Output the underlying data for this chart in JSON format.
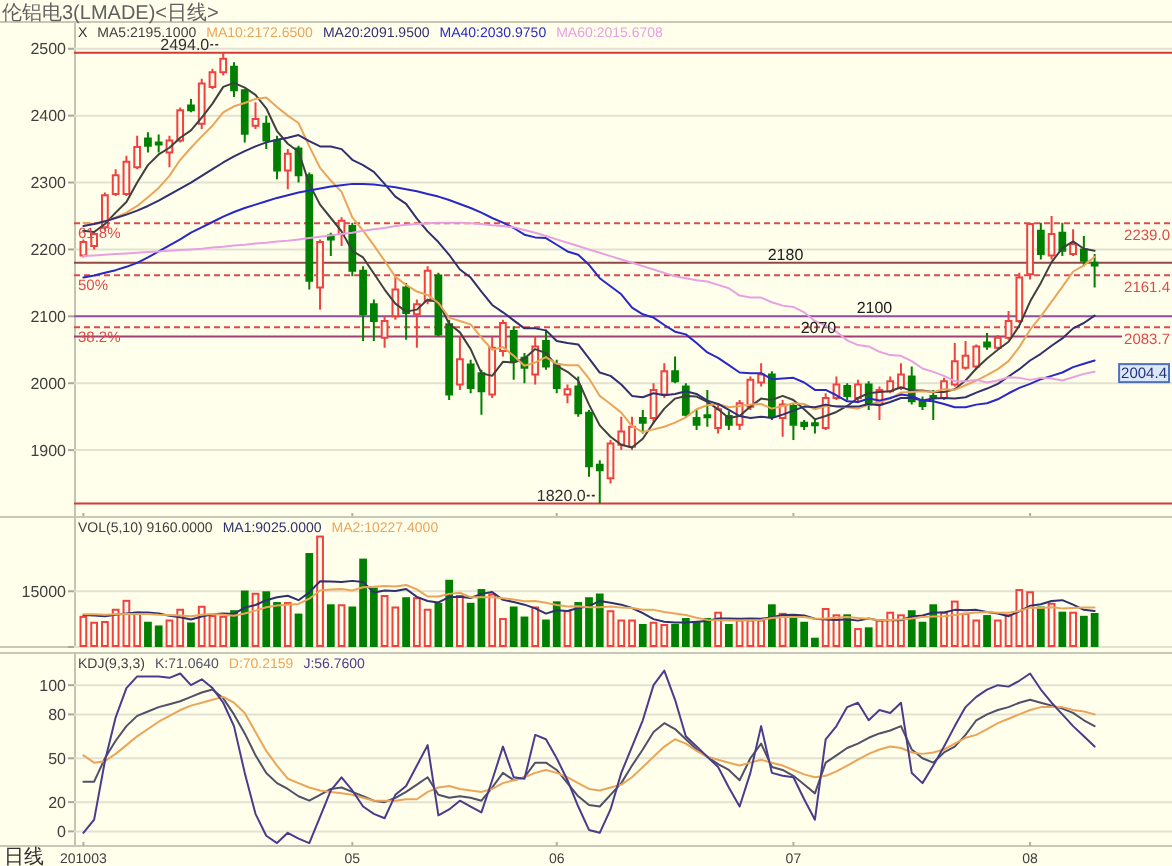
{
  "chart_data": [
    {
      "type": "candlestick",
      "title": "伦铝电3(LMADE)<日线>",
      "categories": [
        "201003",
        null,
        null,
        null,
        null,
        null,
        null,
        null,
        null,
        null,
        null,
        null,
        null,
        null,
        null,
        null,
        null,
        null,
        null,
        null,
        null,
        null,
        null,
        null,
        null,
        "05",
        null,
        null,
        null,
        null,
        null,
        null,
        null,
        null,
        null,
        null,
        null,
        null,
        null,
        null,
        null,
        null,
        null,
        null,
        "06",
        null,
        null,
        null,
        null,
        null,
        null,
        null,
        null,
        null,
        null,
        null,
        null,
        null,
        null,
        null,
        null,
        null,
        null,
        null,
        null,
        null,
        "07",
        null,
        null,
        null,
        null,
        null,
        null,
        null,
        null,
        null,
        null,
        null,
        null,
        null,
        null,
        null,
        null,
        null,
        null,
        null,
        null,
        null,
        "08",
        null,
        null,
        null,
        null,
        null,
        null
      ],
      "ohlc": [
        [
          2191,
          2215,
          2188,
          2211
        ],
        [
          2205,
          2226,
          2200,
          2223
        ],
        [
          2233,
          2285,
          2228,
          2281
        ],
        [
          2283,
          2320,
          2280,
          2311
        ],
        [
          2283,
          2340,
          2280,
          2331
        ],
        [
          2323,
          2370,
          2320,
          2353
        ],
        [
          2366,
          2375,
          2345,
          2355
        ],
        [
          2360,
          2372,
          2345,
          2358
        ],
        [
          2345,
          2370,
          2323,
          2363
        ],
        [
          2363,
          2412,
          2360,
          2408
        ],
        [
          2415,
          2425,
          2405,
          2408
        ],
        [
          2388,
          2455,
          2380,
          2448
        ],
        [
          2443,
          2470,
          2440,
          2465
        ],
        [
          2465,
          2494,
          2460,
          2485
        ],
        [
          2473,
          2480,
          2428,
          2438
        ],
        [
          2438,
          2440,
          2360,
          2373
        ],
        [
          2385,
          2420,
          2380,
          2395
        ],
        [
          2388,
          2400,
          2350,
          2363
        ],
        [
          2363,
          2370,
          2305,
          2318
        ],
        [
          2318,
          2350,
          2290,
          2343
        ],
        [
          2351,
          2355,
          2300,
          2311
        ],
        [
          2311,
          2315,
          2140,
          2153
        ],
        [
          2143,
          2215,
          2110,
          2211
        ],
        [
          2221,
          2225,
          2190,
          2215
        ],
        [
          2223,
          2248,
          2205,
          2243
        ],
        [
          2235,
          2240,
          2160,
          2168
        ],
        [
          2168,
          2175,
          2063,
          2103
        ],
        [
          2118,
          2125,
          2063,
          2093
        ],
        [
          2068,
          2100,
          2053,
          2093
        ],
        [
          2100,
          2160,
          2095,
          2140
        ],
        [
          2143,
          2150,
          2065,
          2105
        ],
        [
          2103,
          2125,
          2053,
          2118
        ],
        [
          2123,
          2175,
          2118,
          2168
        ],
        [
          2161,
          2165,
          2070,
          2073
        ],
        [
          2088,
          2095,
          1975,
          1983
        ],
        [
          1998,
          2070,
          1990,
          2036
        ],
        [
          2028,
          2035,
          1985,
          1993
        ],
        [
          2015,
          2020,
          1953,
          1988
        ],
        [
          1983,
          2070,
          1978,
          2053
        ],
        [
          2048,
          2095,
          2040,
          2090
        ],
        [
          2078,
          2085,
          2005,
          2033
        ],
        [
          2038,
          2045,
          2000,
          2023
        ],
        [
          2013,
          2070,
          1998,
          2055
        ],
        [
          2063,
          2080,
          2020,
          2025
        ],
        [
          2028,
          2035,
          1985,
          1993
        ],
        [
          1983,
          1998,
          1970,
          1991
        ],
        [
          1995,
          2010,
          1950,
          1955
        ],
        [
          1956,
          1960,
          1860,
          1876
        ],
        [
          1878,
          1885,
          1820,
          1870
        ],
        [
          1858,
          1915,
          1850,
          1910
        ],
        [
          1908,
          1950,
          1900,
          1928
        ],
        [
          1905,
          1950,
          1900,
          1935
        ],
        [
          1948,
          1960,
          1925,
          1941
        ],
        [
          1948,
          2000,
          1940,
          1990
        ],
        [
          1983,
          2030,
          1978,
          2018
        ],
        [
          2018,
          2040,
          2000,
          2003
        ],
        [
          1995,
          2000,
          1950,
          1953
        ],
        [
          1948,
          1960,
          1930,
          1938
        ],
        [
          1952,
          1990,
          1935,
          1949
        ],
        [
          1933,
          1970,
          1925,
          1961
        ],
        [
          1951,
          1958,
          1930,
          1938
        ],
        [
          1938,
          1975,
          1930,
          1970
        ],
        [
          1965,
          2010,
          1960,
          2005
        ],
        [
          2001,
          2030,
          1995,
          2013
        ],
        [
          2013,
          2018,
          1945,
          1950
        ],
        [
          1948,
          1975,
          1920,
          1968
        ],
        [
          1966,
          1970,
          1915,
          1938
        ],
        [
          1941,
          1945,
          1930,
          1936
        ],
        [
          1940,
          1945,
          1925,
          1937
        ],
        [
          1933,
          1985,
          1930,
          1978
        ],
        [
          1978,
          2010,
          1975,
          1998
        ],
        [
          1996,
          2000,
          1975,
          1981
        ],
        [
          1978,
          2005,
          1970,
          1998
        ],
        [
          1998,
          2003,
          1960,
          1968
        ],
        [
          1968,
          1995,
          1945,
          1990
        ],
        [
          1988,
          2010,
          1985,
          2003
        ],
        [
          1993,
          2030,
          1990,
          2013
        ],
        [
          2010,
          2025,
          1968,
          1973
        ],
        [
          1973,
          1980,
          1960,
          1966
        ],
        [
          1981,
          1990,
          1945,
          1978
        ],
        [
          1978,
          2008,
          1975,
          2003
        ],
        [
          1998,
          2060,
          1995,
          2033
        ],
        [
          2023,
          2063,
          2020,
          2041
        ],
        [
          2025,
          2058,
          2020,
          2055
        ],
        [
          2061,
          2075,
          2050,
          2055
        ],
        [
          2053,
          2072,
          2050,
          2068
        ],
        [
          2068,
          2108,
          2065,
          2093
        ],
        [
          2093,
          2165,
          2090,
          2158
        ],
        [
          2163,
          2240,
          2155,
          2238
        ],
        [
          2228,
          2240,
          2185,
          2193
        ],
        [
          2191,
          2250,
          2185,
          2223
        ],
        [
          2225,
          2240,
          2190,
          2198
        ],
        [
          2193,
          2230,
          2190,
          2208
        ],
        [
          2200,
          2220,
          2175,
          2183
        ],
        [
          2180,
          2193,
          2143,
          2176
        ]
      ],
      "colors": [
        "#f04040",
        "#f04040",
        "#f04040",
        "#f04040",
        "#f04040",
        "#f04040",
        "#008000",
        "#008000",
        "#f04040",
        "#f04040",
        "#008000",
        "#f04040",
        "#f04040",
        "#f04040",
        "#008000",
        "#008000",
        "#f04040",
        "#008000",
        "#008000",
        "#f04040",
        "#008000",
        "#008000",
        "#f04040",
        "#008000",
        "#f04040",
        "#008000",
        "#008000",
        "#008000",
        "#f04040",
        "#f04040",
        "#008000",
        "#f04040",
        "#f04040",
        "#008000",
        "#008000",
        "#f04040",
        "#008000",
        "#008000",
        "#f04040",
        "#f04040",
        "#008000",
        "#008000",
        "#f04040",
        "#008000",
        "#008000",
        "#f04040",
        "#008000",
        "#008000",
        "#008000",
        "#f04040",
        "#f04040",
        "#f04040",
        "#008000",
        "#f04040",
        "#f04040",
        "#008000",
        "#008000",
        "#008000",
        "#008000",
        "#f04040",
        "#008000",
        "#f04040",
        "#f04040",
        "#f04040",
        "#008000",
        "#f04040",
        "#008000",
        "#008000",
        "#008000",
        "#f04040",
        "#f04040",
        "#008000",
        "#f04040",
        "#008000",
        "#f04040",
        "#f04040",
        "#f04040",
        "#008000",
        "#008000",
        "#008000",
        "#f04040",
        "#f04040",
        "#f04040",
        "#f04040",
        "#008000",
        "#f04040",
        "#f04040",
        "#f04040",
        "#f04040",
        "#008000",
        "#f04040",
        "#008000",
        "#f04040",
        "#008000",
        "#008000"
      ],
      "series": [
        {
          "type": "line",
          "name": "MA5:2195.1000",
          "color": "#404040",
          "values": [
            2228,
            2226,
            2238,
            2255,
            2271,
            2300,
            2326,
            2342,
            2352,
            2367,
            2378,
            2397,
            2418,
            2443,
            2449,
            2442,
            2431,
            2411,
            2377,
            2358,
            2346,
            2298,
            2267,
            2247,
            2227,
            2198,
            2188,
            2164,
            2140,
            2119,
            2107,
            2110,
            2125,
            2121,
            2089,
            2076,
            2051,
            2015,
            2011,
            2032,
            2031,
            2037,
            2051,
            2045,
            2026,
            2017,
            2004,
            1968,
            1937,
            1920,
            1908,
            1904,
            1917,
            1941,
            1962,
            1977,
            1981,
            1980,
            1972,
            1961,
            1948,
            1951,
            1965,
            1977,
            1975,
            1981,
            1975,
            1961,
            1946,
            1951,
            1957,
            1966,
            1978,
            1985,
            1987,
            1988,
            1994,
            1989,
            1989,
            1987,
            1987,
            1991,
            2004,
            2022,
            2037,
            2050,
            2062,
            2086,
            2122,
            2150,
            2181,
            2202,
            2212,
            2201,
            2198
          ]
        },
        {
          "type": "line",
          "name": "MA10:2172.6500",
          "color": "#eba55a",
          "values": [
            2240,
            2238,
            2242,
            2248,
            2255,
            2265,
            2278,
            2292,
            2310,
            2334,
            2352,
            2369,
            2385,
            2405,
            2414,
            2419,
            2425,
            2427,
            2413,
            2400,
            2389,
            2354,
            2322,
            2303,
            2286,
            2248,
            2228,
            2206,
            2183,
            2159,
            2147,
            2137,
            2132,
            2120,
            2098,
            2093,
            2088,
            2068,
            2050,
            2054,
            2041,
            2026,
            2031,
            2039,
            2029,
            2027,
            2027,
            2007,
            1981,
            1969,
            1956,
            1936,
            1927,
            1931,
            1935,
            1941,
            1949,
            1961,
            1967,
            1969,
            1964,
            1966,
            1968,
            1969,
            1962,
            1966,
            1970,
            1969,
            1961,
            1966,
            1966,
            1964,
            1962,
            1968,
            1972,
            1977,
            1986,
            1987,
            1988,
            1987,
            1991,
            1990,
            1997,
            2004,
            2012,
            2021,
            2033,
            2054,
            2080,
            2100,
            2122,
            2144,
            2167,
            2176,
            2189
          ]
        },
        {
          "type": "line",
          "name": "MA20:2091.9500",
          "color": "#303070",
          "values": [
            2235,
            2238,
            2242,
            2247,
            2252,
            2258,
            2265,
            2273,
            2282,
            2291,
            2300,
            2310,
            2320,
            2330,
            2339,
            2347,
            2354,
            2360,
            2364,
            2367,
            2371,
            2362,
            2354,
            2354,
            2350,
            2334,
            2326,
            2316,
            2298,
            2279,
            2268,
            2246,
            2227,
            2211,
            2192,
            2170,
            2158,
            2137,
            2117,
            2106,
            2094,
            2082,
            2082,
            2079,
            2063,
            2060,
            2058,
            2037,
            2016,
            2011,
            1998,
            1981,
            1979,
            1985,
            1982,
            1984,
            1988,
            1984,
            1974,
            1969,
            1960,
            1951,
            1948,
            1950,
            1948,
            1953,
            1959,
            1965,
            1964,
            1968,
            1965,
            1965,
            1965,
            1969,
            1967,
            1972,
            1978,
            1978,
            1974,
            1977,
            1978,
            1977,
            1979,
            1986,
            1992,
            1999,
            2010,
            2021,
            2034,
            2044,
            2056,
            2067,
            2082,
            2090,
            2101
          ]
        },
        {
          "type": "line",
          "name": "MA40:2030.9750",
          "color": "#2828c8",
          "values": [
            2158,
            2161,
            2165,
            2169,
            2174,
            2180,
            2188,
            2197,
            2206,
            2215,
            2225,
            2233,
            2241,
            2249,
            2256,
            2262,
            2267,
            2272,
            2277,
            2281,
            2285,
            2288,
            2291,
            2294,
            2296,
            2298,
            2298,
            2297,
            2295,
            2293,
            2290,
            2287,
            2283,
            2279,
            2274,
            2268,
            2262,
            2255,
            2247,
            2240,
            2232,
            2222,
            2218,
            2217,
            2207,
            2197,
            2192,
            2177,
            2157,
            2145,
            2133,
            2113,
            2103,
            2098,
            2087,
            2077,
            2073,
            2060,
            2046,
            2038,
            2027,
            2016,
            2015,
            2015,
            2006,
            2007,
            2008,
            2001,
            1990,
            1990,
            1982,
            1973,
            1972,
            1977,
            1974,
            1978,
            1983,
            1981,
            1974,
            1973,
            1969,
            1964,
            1964,
            1968,
            1970,
            1976,
            1985,
            1993,
            1999,
            2006,
            2011,
            2016,
            2024,
            2029,
            2034
          ]
        },
        {
          "type": "line",
          "name": "MA60:2015.6708",
          "color": "#e8a0e0",
          "values": [
            2190,
            2191,
            2192,
            2193,
            2194,
            2195,
            2196,
            2197,
            2198,
            2199,
            2200,
            2201,
            2203,
            2204,
            2206,
            2207,
            2209,
            2210,
            2212,
            2213,
            2215,
            2217,
            2219,
            2221,
            2223,
            2225,
            2228,
            2230,
            2232,
            2235,
            2237,
            2238,
            2239,
            2240,
            2240,
            2240,
            2239,
            2238,
            2236,
            2235,
            2233,
            2229,
            2225,
            2220,
            2215,
            2210,
            2205,
            2200,
            2195,
            2190,
            2185,
            2180,
            2175,
            2170,
            2165,
            2160,
            2157,
            2154,
            2152,
            2147,
            2142,
            2131,
            2128,
            2128,
            2121,
            2116,
            2114,
            2106,
            2093,
            2086,
            2077,
            2064,
            2057,
            2055,
            2047,
            2042,
            2041,
            2033,
            2022,
            2017,
            2011,
            2003,
            2003,
            2005,
            2001,
            2004,
            2009,
            2008,
            2005,
            2008,
            2007,
            2004,
            2009,
            2014,
            2017
          ]
        }
      ],
      "ylim": [
        1800,
        2540
      ],
      "yticks": [
        1900,
        2000,
        2100,
        2200,
        2300,
        2400,
        2500
      ],
      "grid": "y",
      "legend": "top left",
      "tick_labels": "y",
      "ref_lines": [
        {
          "axis": "y",
          "value": 2494,
          "label": "2494.0",
          "color": "#d83838"
        },
        {
          "axis": "y",
          "value": 2239,
          "label": "2239.0",
          "color": "#e04848",
          "line_style": "dashed"
        },
        {
          "axis": "y",
          "value": 2180,
          "label": "2180",
          "color": "#904848"
        },
        {
          "axis": "y",
          "value": 2161.4,
          "label": "2161.4",
          "color": "#e04848",
          "line_style": "dashed"
        },
        {
          "axis": "y",
          "value": 2100,
          "label": "2100",
          "color": "#9050a0"
        },
        {
          "axis": "y",
          "value": 2083.7,
          "label": "2083.7",
          "color": "#e04848",
          "line_style": "dashed"
        },
        {
          "axis": "y",
          "value": 2070,
          "label": "2070",
          "color": "#a04070"
        },
        {
          "axis": "y",
          "value": 1820,
          "label": "1820.0",
          "color": "#d83838"
        }
      ],
      "annotations": [
        "X",
        "2004.4",
        {
          "text": "61.8%",
          "y": 2239
        },
        {
          "text": "50%",
          "y": 2161.4
        },
        {
          "text": "38.2%",
          "y": 2083.7
        }
      ]
    },
    {
      "type": "bar",
      "title": "VOL(5,10) 9160.0000",
      "categories": [
        "201003",
        null,
        null,
        null,
        null,
        null,
        null,
        null,
        null,
        null,
        null,
        null,
        null,
        null,
        null,
        null,
        null,
        null,
        null,
        null,
        null,
        null,
        null,
        null,
        null,
        "05",
        null,
        null,
        null,
        null,
        null,
        null,
        null,
        null,
        null,
        null,
        null,
        null,
        null,
        null,
        null,
        null,
        null,
        null,
        "06",
        null,
        null,
        null,
        null,
        null,
        null,
        null,
        null,
        null,
        null,
        null,
        null,
        null,
        null,
        null,
        null,
        null,
        null,
        null,
        null,
        null,
        "07",
        null,
        null,
        null,
        null,
        null,
        null,
        null,
        null,
        null,
        null,
        null,
        null,
        null,
        null,
        null,
        null,
        null,
        null,
        null,
        null,
        null,
        "08",
        null,
        null,
        null,
        null,
        null,
        null
      ],
      "values": [
        8400,
        6800,
        7000,
        10300,
        12700,
        9500,
        6800,
        5800,
        7400,
        10300,
        6600,
        11100,
        8600,
        8400,
        9900,
        15200,
        14600,
        15000,
        12100,
        12100,
        9000,
        25300,
        30000,
        11500,
        11500,
        10900,
        23800,
        16000,
        14000,
        10900,
        13400,
        13400,
        10300,
        11900,
        18100,
        14000,
        11900,
        15600,
        14400,
        7800,
        10900,
        8200,
        10900,
        7400,
        12300,
        9900,
        12100,
        13400,
        14400,
        9900,
        7400,
        7400,
        6200,
        6800,
        6200,
        6200,
        7800,
        7000,
        7800,
        9500,
        6200,
        7400,
        7400,
        7400,
        11500,
        9200,
        7800,
        6800,
        2500,
        10500,
        8800,
        8800,
        5100,
        5300,
        7400,
        9500,
        8800,
        9900,
        6800,
        11500,
        9500,
        12500,
        9200,
        7400,
        8600,
        7400,
        8800,
        15600,
        15000,
        10900,
        11900,
        9500,
        9500,
        8400,
        9160
      ],
      "colors": [
        "#f04040",
        "#f04040",
        "#f04040",
        "#f04040",
        "#f04040",
        "#f04040",
        "#008000",
        "#008000",
        "#f04040",
        "#f04040",
        "#008000",
        "#f04040",
        "#f04040",
        "#f04040",
        "#008000",
        "#008000",
        "#f04040",
        "#008000",
        "#008000",
        "#f04040",
        "#008000",
        "#008000",
        "#f04040",
        "#008000",
        "#f04040",
        "#008000",
        "#008000",
        "#008000",
        "#f04040",
        "#f04040",
        "#008000",
        "#f04040",
        "#f04040",
        "#008000",
        "#008000",
        "#f04040",
        "#008000",
        "#008000",
        "#f04040",
        "#f04040",
        "#008000",
        "#008000",
        "#f04040",
        "#008000",
        "#008000",
        "#f04040",
        "#008000",
        "#008000",
        "#008000",
        "#f04040",
        "#f04040",
        "#f04040",
        "#008000",
        "#f04040",
        "#f04040",
        "#008000",
        "#008000",
        "#008000",
        "#008000",
        "#f04040",
        "#008000",
        "#f04040",
        "#f04040",
        "#f04040",
        "#008000",
        "#f04040",
        "#008000",
        "#008000",
        "#008000",
        "#f04040",
        "#f04040",
        "#008000",
        "#f04040",
        "#008000",
        "#f04040",
        "#f04040",
        "#f04040",
        "#008000",
        "#008000",
        "#008000",
        "#f04040",
        "#f04040",
        "#f04040",
        "#f04040",
        "#008000",
        "#f04040",
        "#f04040",
        "#f04040",
        "#f04040",
        "#008000",
        "#f04040",
        "#008000",
        "#f04040",
        "#008000",
        "#008000"
      ],
      "series": [
        {
          "type": "line",
          "name": "MA1:9025.0000",
          "color": "#303070",
          "values": [
            8600,
            8500,
            8300,
            8700,
            9000,
            9300,
            9300,
            9000,
            8400,
            8000,
            7400,
            8200,
            8800,
            9000,
            8900,
            10600,
            11300,
            12600,
            13400,
            13800,
            12600,
            14700,
            17700,
            17600,
            17500,
            17800,
            17500,
            14700,
            15200,
            15100,
            15600,
            13500,
            12400,
            12000,
            13400,
            13500,
            13200,
            14300,
            14800,
            12700,
            12100,
            11400,
            10400,
            9000,
            9900,
            9700,
            10500,
            11000,
            12400,
            11900,
            11400,
            10500,
            9100,
            7500,
            6800,
            6600,
            6600,
            6800,
            7000,
            7700,
            7700,
            7600,
            7700,
            7600,
            8000,
            8600,
            8700,
            8500,
            7600,
            7400,
            7300,
            7500,
            7100,
            7700,
            7100,
            7200,
            7200,
            8200,
            8500,
            9300,
            9300,
            10000,
            9900,
            10000,
            9400,
            9000,
            8300,
            9600,
            11100,
            11500,
            12400,
            12600,
            11400,
            10000,
            9700
          ]
        },
        {
          "type": "line",
          "name": "MA2:10227.4000",
          "color": "#eba55a",
          "values": [
            8800,
            8800,
            8700,
            8800,
            8900,
            8900,
            8900,
            8700,
            8600,
            8500,
            8300,
            8700,
            8900,
            8700,
            8400,
            9000,
            9800,
            10700,
            11200,
            11400,
            11600,
            13000,
            15200,
            15500,
            15600,
            15200,
            16100,
            16200,
            16400,
            16300,
            16700,
            15500,
            13600,
            13600,
            14300,
            14600,
            13400,
            13400,
            13400,
            13100,
            12800,
            12300,
            12400,
            11900,
            11300,
            10900,
            11000,
            10700,
            10700,
            10900,
            10600,
            10500,
            10000,
            10000,
            9400,
            9000,
            8600,
            7900,
            7300,
            7200,
            7100,
            7100,
            7200,
            7300,
            7800,
            8100,
            8100,
            8100,
            7600,
            7700,
            7900,
            8100,
            7800,
            7600,
            7200,
            7300,
            7400,
            7700,
            8100,
            8200,
            8300,
            8600,
            9000,
            9300,
            9400,
            9200,
            9200,
            9700,
            10600,
            10500,
            10700,
            10400,
            10500,
            10600,
            10600
          ]
        }
      ],
      "ylim": [
        0,
        35000
      ],
      "yticks": [
        {
          "value": 0,
          "label": null
        },
        15000
      ],
      "grid": "y",
      "legend": "top left",
      "tick_labels": "y"
    },
    {
      "type": "line",
      "title": "KDJ(9,3,3)",
      "xlabel": "日线",
      "categories": [
        "201003",
        null,
        null,
        null,
        null,
        null,
        null,
        null,
        null,
        null,
        null,
        null,
        null,
        null,
        null,
        null,
        null,
        null,
        null,
        null,
        null,
        null,
        null,
        null,
        null,
        "05",
        null,
        null,
        null,
        null,
        null,
        null,
        null,
        null,
        null,
        null,
        null,
        null,
        null,
        null,
        null,
        null,
        null,
        null,
        "06",
        null,
        null,
        null,
        null,
        null,
        null,
        null,
        null,
        null,
        null,
        null,
        null,
        null,
        null,
        null,
        null,
        null,
        null,
        null,
        null,
        null,
        "07",
        null,
        null,
        null,
        null,
        null,
        null,
        null,
        null,
        null,
        null,
        null,
        null,
        null,
        null,
        null,
        null,
        null,
        null,
        null,
        null,
        null,
        "08",
        null,
        null,
        null,
        null,
        null,
        null
      ],
      "series": [
        {
          "name": "K:71.0640",
          "color": "#505068",
          "values": [
            34,
            34,
            50,
            62,
            72,
            79,
            82,
            85,
            87,
            89,
            92,
            95,
            97,
            91,
            80,
            67,
            52,
            40,
            33,
            29,
            24,
            21,
            25,
            29,
            30,
            27,
            24,
            21,
            20,
            23,
            27,
            32,
            37,
            25,
            23,
            24,
            23,
            21,
            30,
            40,
            35,
            37,
            47,
            47,
            42,
            33,
            24,
            18,
            17,
            25,
            33,
            45,
            56,
            68,
            74,
            70,
            63,
            56,
            51,
            46,
            42,
            35,
            50,
            60,
            44,
            42,
            38,
            32,
            26,
            47,
            52,
            57,
            60,
            64,
            67,
            69,
            72,
            56,
            50,
            47,
            54,
            58,
            66,
            76,
            80,
            83,
            85,
            88,
            90,
            88,
            86,
            84,
            81,
            76,
            72
          ]
        },
        {
          "name": "D:70.2159",
          "color": "#eba55a",
          "values": [
            52,
            47,
            48,
            53,
            59,
            65,
            70,
            75,
            79,
            83,
            86,
            88,
            90,
            92,
            88,
            81,
            68,
            55,
            45,
            36,
            33,
            30,
            28,
            27,
            26,
            25,
            23,
            21,
            21,
            21,
            22,
            22,
            27,
            30,
            31,
            29,
            28,
            27,
            29,
            33,
            35,
            37,
            40,
            42,
            40,
            37,
            33,
            29,
            28,
            30,
            32,
            37,
            44,
            51,
            58,
            63,
            60,
            55,
            51,
            49,
            47,
            45,
            47,
            49,
            47,
            45,
            42,
            39,
            37,
            38,
            41,
            45,
            49,
            53,
            56,
            58,
            57,
            54,
            53,
            54,
            56,
            60,
            64,
            66,
            70,
            74,
            77,
            80,
            83,
            85,
            85,
            85,
            83,
            82,
            80
          ]
        },
        {
          "name": "J:56.7600",
          "color": "#4a3c8c",
          "values": [
            -1,
            8,
            48,
            78,
            98,
            106,
            106,
            106,
            105,
            108,
            100,
            104,
            98,
            88,
            72,
            40,
            12,
            -3,
            -8,
            -1,
            -5,
            -8,
            10,
            28,
            37,
            28,
            17,
            12,
            9,
            25,
            31,
            45,
            59,
            11,
            15,
            21,
            17,
            13,
            35,
            58,
            37,
            36,
            66,
            63,
            50,
            35,
            17,
            1,
            -1,
            15,
            40,
            58,
            76,
            100,
            110,
            90,
            65,
            58,
            51,
            44,
            30,
            17,
            40,
            72,
            40,
            38,
            37,
            22,
            8,
            63,
            72,
            85,
            88,
            76,
            83,
            81,
            88,
            40,
            33,
            45,
            58,
            72,
            85,
            92,
            97,
            100,
            99,
            103,
            108,
            97,
            88,
            80,
            72,
            65,
            58
          ]
        }
      ],
      "ylim": [
        -10,
        122
      ],
      "yticks": [
        0,
        20,
        50,
        80,
        100
      ],
      "grid": "y",
      "legend": "top left"
    }
  ]
}
